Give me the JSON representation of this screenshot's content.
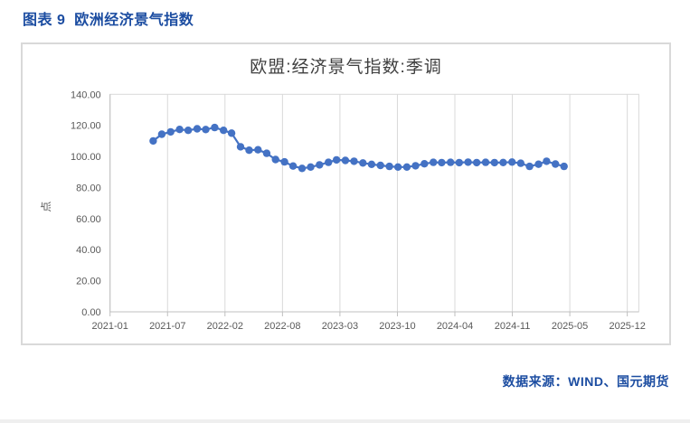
{
  "page": {
    "title": "图表 9  欧洲经济景气指数",
    "source_note": "数据来源：WIND、国元期货"
  },
  "style": {
    "accent_blue": "#1C4DA1",
    "series_blue": "#4472C4",
    "grid_gray": "#D9D9D9",
    "axis_gray": "#BFBFBF",
    "label_gray": "#595959",
    "title_gray": "#3F3F3F",
    "card_border": "#D9D9D9"
  },
  "chart_data": {
    "type": "line",
    "title": "欧盟:经济景气指数:季调",
    "ylabel": "点",
    "xlabel": "",
    "ylim": [
      0,
      140
    ],
    "y_tick_step": 20,
    "y_tick_labels": [
      "0.00",
      "20.00",
      "40.00",
      "60.00",
      "80.00",
      "100.00",
      "120.00",
      "140.00"
    ],
    "x_tick_labels": [
      "2021-01",
      "2021-07",
      "2022-02",
      "2022-08",
      "2023-03",
      "2023-10",
      "2024-04",
      "2024-11",
      "2025-05",
      "2025-12"
    ],
    "grid": "vertical-only",
    "legend": "none",
    "marker": "circle",
    "series": [
      {
        "name": "欧盟:经济景气指数:季调",
        "x": [
          "2021-05",
          "2021-06",
          "2021-07",
          "2021-08",
          "2021-09",
          "2021-10",
          "2021-11",
          "2021-12",
          "2022-01",
          "2022-02",
          "2022-03",
          "2022-04",
          "2022-05",
          "2022-06",
          "2022-07",
          "2022-08",
          "2022-09",
          "2022-10",
          "2022-11",
          "2022-12",
          "2023-01",
          "2023-02",
          "2023-03",
          "2023-04",
          "2023-05",
          "2023-06",
          "2023-07",
          "2023-08",
          "2023-09",
          "2023-10",
          "2023-11",
          "2023-12",
          "2024-01",
          "2024-02",
          "2024-03",
          "2024-04",
          "2024-05",
          "2024-06",
          "2024-07",
          "2024-08",
          "2024-09",
          "2024-10",
          "2024-11",
          "2024-12",
          "2025-01",
          "2025-02",
          "2025-03",
          "2025-04"
        ],
        "values": [
          110.0,
          114.3,
          115.8,
          117.4,
          116.8,
          117.8,
          117.3,
          118.6,
          116.8,
          115.0,
          106.2,
          104.0,
          104.3,
          102.0,
          98.0,
          96.5,
          93.8,
          92.3,
          93.2,
          94.6,
          96.2,
          97.8,
          97.4,
          96.9,
          95.8,
          94.9,
          94.2,
          93.6,
          93.2,
          93.2,
          94.0,
          95.3,
          96.2,
          96.0,
          96.2,
          96.0,
          96.3,
          96.0,
          96.2,
          96.0,
          96.1,
          96.4,
          95.6,
          93.6,
          95.0,
          96.9,
          95.1,
          93.6
        ]
      }
    ]
  }
}
